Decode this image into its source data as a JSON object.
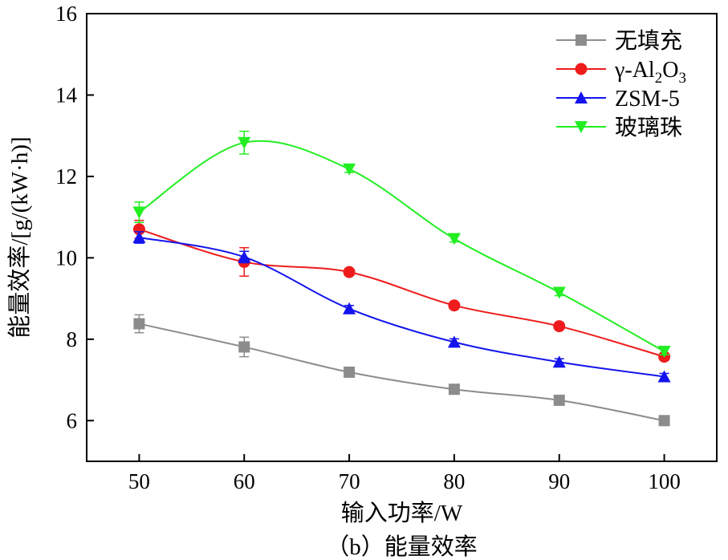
{
  "chart_data": {
    "type": "line",
    "title": "",
    "caption": "（b）能量效率",
    "xlabel": "输入功率/W",
    "ylabel": "能量效率/[g/(kW·h)]",
    "x": [
      50,
      60,
      70,
      80,
      90,
      100
    ],
    "x_ticks": [
      "50",
      "60",
      "70",
      "80",
      "90",
      "100"
    ],
    "y_ticks": [
      "6",
      "8",
      "10",
      "12",
      "14",
      "16"
    ],
    "xlim": [
      45,
      105
    ],
    "ylim": [
      5,
      16
    ],
    "legend_position": "top-right",
    "series": [
      {
        "name": "无填充",
        "color": "#8c8c8c",
        "marker": "square",
        "values": [
          8.38,
          7.81,
          7.19,
          6.77,
          6.5,
          6.0
        ],
        "errors": [
          0.22,
          0.24,
          0.08,
          0.06,
          0.06,
          0.06
        ]
      },
      {
        "name": "γ-Al2O3",
        "color": "#ee1c1c",
        "marker": "circle",
        "values": [
          10.7,
          9.9,
          9.65,
          8.83,
          8.32,
          7.57
        ],
        "errors": [
          0.22,
          0.35,
          0.08,
          0.08,
          0.08,
          0.08
        ]
      },
      {
        "name": "ZSM-5",
        "color": "#1414ee",
        "marker": "triangle-up",
        "values": [
          10.5,
          10.02,
          8.75,
          7.93,
          7.44,
          7.08
        ],
        "errors": [
          0.14,
          0.14,
          0.08,
          0.08,
          0.08,
          0.08
        ]
      },
      {
        "name": "玻璃珠",
        "color": "#22ee22",
        "marker": "triangle-down",
        "values": [
          11.12,
          12.83,
          12.18,
          10.47,
          9.15,
          7.7
        ],
        "errors": [
          0.25,
          0.28,
          0.08,
          0.08,
          0.08,
          0.08
        ]
      }
    ]
  }
}
